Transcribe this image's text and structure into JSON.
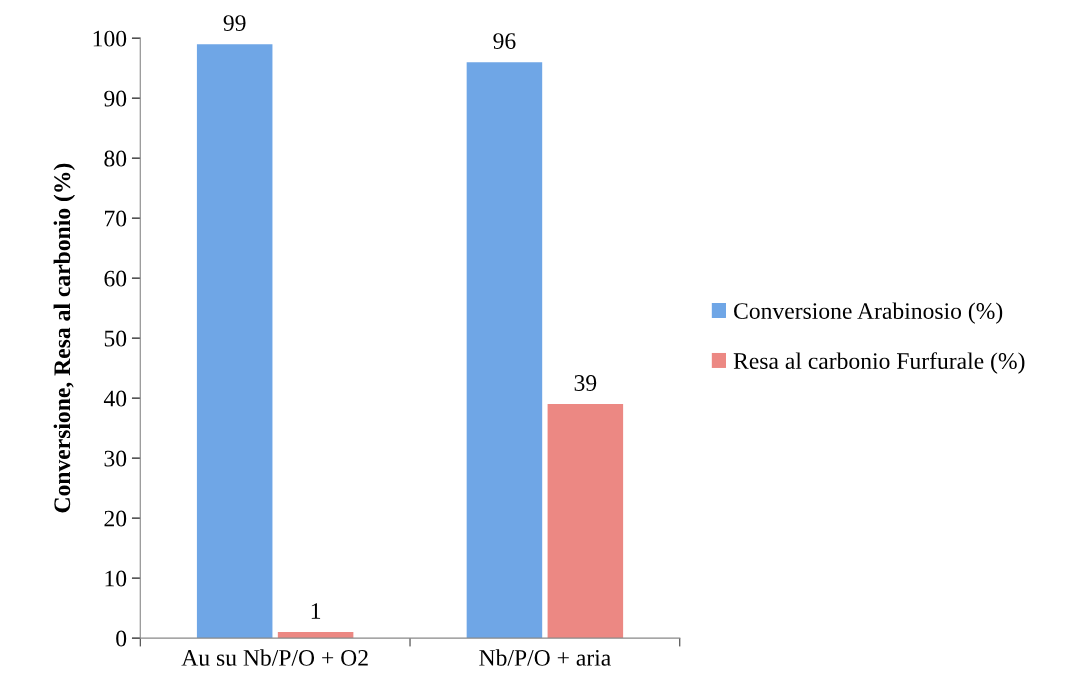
{
  "chart_data": {
    "type": "bar",
    "ylabel": "Conversione, Resa al carbonio (%)",
    "categories": [
      "Au su Nb/P/O + O2",
      "Nb/P/O + aria"
    ],
    "series": [
      {
        "name": "Conversione Arabinosio (%)",
        "color": "#6fa6e6",
        "values": [
          99,
          96
        ]
      },
      {
        "name": "Resa al carbonio Furfurale (%)",
        "color": "#ec8883",
        "values": [
          1,
          39
        ]
      }
    ],
    "ylim": [
      0,
      100
    ],
    "yticks": [
      0,
      10,
      20,
      30,
      40,
      50,
      60,
      70,
      80,
      90,
      100
    ],
    "grid": false,
    "legend": "right",
    "data_labels": true
  }
}
